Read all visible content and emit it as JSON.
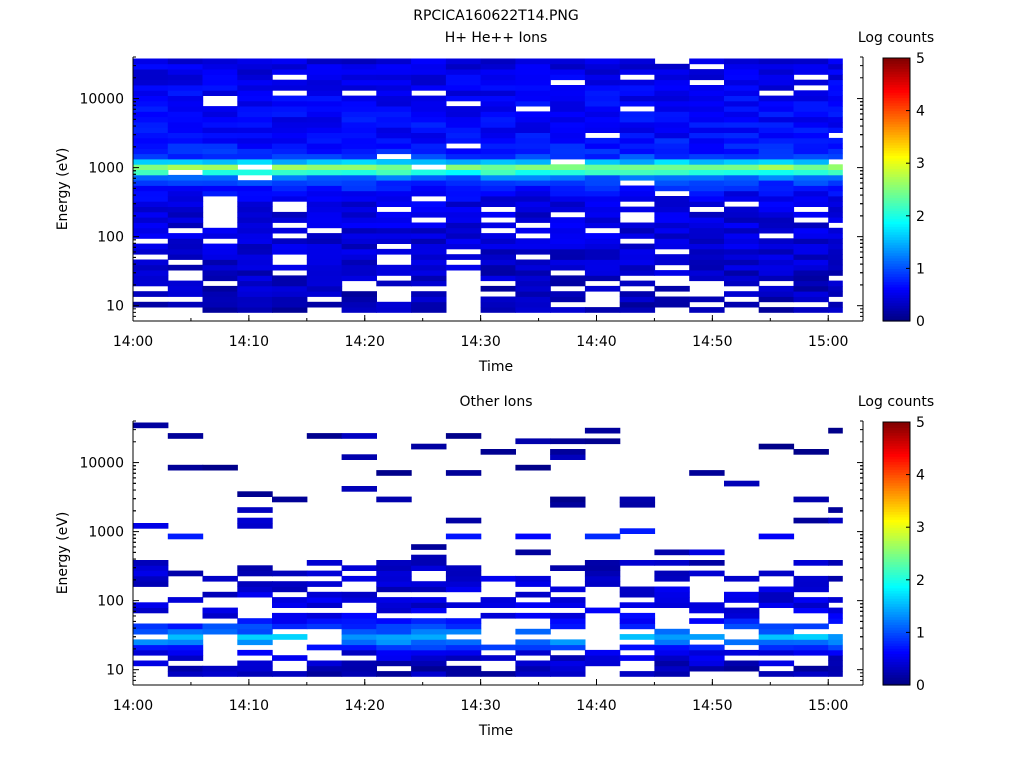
{
  "figure": {
    "title": "RPCICA160622T14.PNG"
  },
  "chart_data": [
    {
      "type": "heatmap",
      "title": "H+ He++ Ions",
      "xlabel": "Time",
      "ylabel": "Energy (eV)",
      "x_ticks": [
        "14:00",
        "14:10",
        "14:20",
        "14:30",
        "14:40",
        "14:50",
        "15:00"
      ],
      "y_ticks": [
        "10",
        "100",
        "1000",
        "10000"
      ],
      "y_scale": "log",
      "ylim": [
        6,
        40000
      ],
      "xlim": [
        "14:00",
        "15:03"
      ],
      "time_bins": [
        "14:00",
        "14:03",
        "14:06",
        "14:09",
        "14:12",
        "14:15",
        "14:18",
        "14:21",
        "14:24",
        "14:27",
        "14:30",
        "14:33",
        "14:36",
        "14:39",
        "14:42",
        "14:45",
        "14:48",
        "14:51",
        "14:54",
        "14:57",
        "15:00"
      ],
      "colorbar": {
        "label": "Log counts",
        "ticks": [
          "0",
          "1",
          "2",
          "3",
          "4",
          "5"
        ],
        "range": [
          0,
          5
        ]
      },
      "profile": [
        {
          "energy": 10,
          "value": 0.25
        },
        {
          "energy": 15,
          "value": 0.3
        },
        {
          "energy": 30,
          "value": 0.35
        },
        {
          "energy": 60,
          "value": 0.4
        },
        {
          "energy": 100,
          "value": 0.45
        },
        {
          "energy": 200,
          "value": 0.45
        },
        {
          "energy": 400,
          "value": 0.55
        },
        {
          "energy": 700,
          "value": 1.0
        },
        {
          "energy": 900,
          "value": 2.3
        },
        {
          "energy": 1000,
          "value": 2.7
        },
        {
          "energy": 1150,
          "value": 1.8
        },
        {
          "energy": 1500,
          "value": 0.8
        },
        {
          "energy": 3000,
          "value": 0.65
        },
        {
          "energy": 10000,
          "value": 0.6
        },
        {
          "energy": 40000,
          "value": 0.45
        }
      ],
      "empty_fraction": {
        "below_30eV": 0.4,
        "30_to_400eV": 0.16,
        "above_400eV": 0.04
      }
    },
    {
      "type": "heatmap",
      "title": "Other Ions",
      "xlabel": "Time",
      "ylabel": "Energy (eV)",
      "x_ticks": [
        "14:00",
        "14:10",
        "14:20",
        "14:30",
        "14:40",
        "14:50",
        "15:00"
      ],
      "y_ticks": [
        "10",
        "100",
        "1000",
        "10000"
      ],
      "y_scale": "log",
      "ylim": [
        6,
        40000
      ],
      "xlim": [
        "14:00",
        "15:03"
      ],
      "time_bins": [
        "14:00",
        "14:03",
        "14:06",
        "14:09",
        "14:12",
        "14:15",
        "14:18",
        "14:21",
        "14:24",
        "14:27",
        "14:30",
        "14:33",
        "14:36",
        "14:39",
        "14:42",
        "14:45",
        "14:48",
        "14:51",
        "14:54",
        "14:57",
        "15:00"
      ],
      "colorbar": {
        "label": "Log counts",
        "ticks": [
          "0",
          "1",
          "2",
          "3",
          "4",
          "5"
        ],
        "range": [
          0,
          5
        ]
      },
      "profile": [
        {
          "energy": 10,
          "value": 0.25
        },
        {
          "energy": 18,
          "value": 0.5
        },
        {
          "energy": 25,
          "value": 1.2
        },
        {
          "energy": 30,
          "value": 1.5
        },
        {
          "energy": 38,
          "value": 1.0
        },
        {
          "energy": 60,
          "value": 0.5
        },
        {
          "energy": 150,
          "value": 0.4
        },
        {
          "energy": 600,
          "value": 0.3
        },
        {
          "energy": 950,
          "value": 0.9
        },
        {
          "energy": 1050,
          "value": 0.8
        },
        {
          "energy": 1300,
          "value": 0.25
        },
        {
          "energy": 10000,
          "value": 0.15
        },
        {
          "energy": 40000,
          "value": 0.15
        }
      ],
      "empty_fraction": {
        "below_30eV": 0.3,
        "30_to_400eV": 0.45,
        "above_400eV": 0.88
      }
    }
  ]
}
